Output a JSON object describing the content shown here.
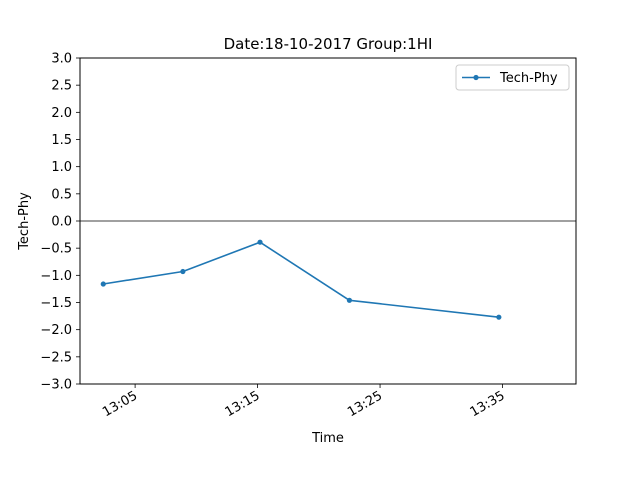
{
  "chart_data": {
    "type": "line",
    "title": "Date:18-10-2017 Group:1HI",
    "xlabel": "Time",
    "ylabel": "Tech-Phy",
    "x_unit": "minutes past 13:00",
    "xlim": [
      0.5,
      41.0
    ],
    "ylim": [
      -3.0,
      3.0
    ],
    "x_ticks": [
      {
        "value": 5,
        "label": "13:05"
      },
      {
        "value": 15,
        "label": "13:15"
      },
      {
        "value": 25,
        "label": "13:25"
      },
      {
        "value": 35,
        "label": "13:35"
      }
    ],
    "y_ticks": [
      {
        "value": 3.0,
        "label": "3.0"
      },
      {
        "value": 2.5,
        "label": "2.5"
      },
      {
        "value": 2.0,
        "label": "2.0"
      },
      {
        "value": 1.5,
        "label": "1.5"
      },
      {
        "value": 1.0,
        "label": "1.0"
      },
      {
        "value": 0.5,
        "label": "0.5"
      },
      {
        "value": 0.0,
        "label": "0.0"
      },
      {
        "value": -0.5,
        "label": "−0.5"
      },
      {
        "value": -1.0,
        "label": "−1.0"
      },
      {
        "value": -1.5,
        "label": "−1.5"
      },
      {
        "value": -2.0,
        "label": "−2.0"
      },
      {
        "value": -2.5,
        "label": "−2.5"
      },
      {
        "value": -3.0,
        "label": "−3.0"
      }
    ],
    "zero_line": true,
    "grid": false,
    "legend_position": "top-right",
    "series": [
      {
        "name": "Tech-Phy",
        "color": "#1f77b4",
        "marker": "dot",
        "points": [
          {
            "x": 2.4,
            "y": -1.16
          },
          {
            "x": 8.9,
            "y": -0.93
          },
          {
            "x": 15.2,
            "y": -0.39
          },
          {
            "x": 22.5,
            "y": -1.46
          },
          {
            "x": 34.7,
            "y": -1.77
          }
        ]
      }
    ]
  }
}
